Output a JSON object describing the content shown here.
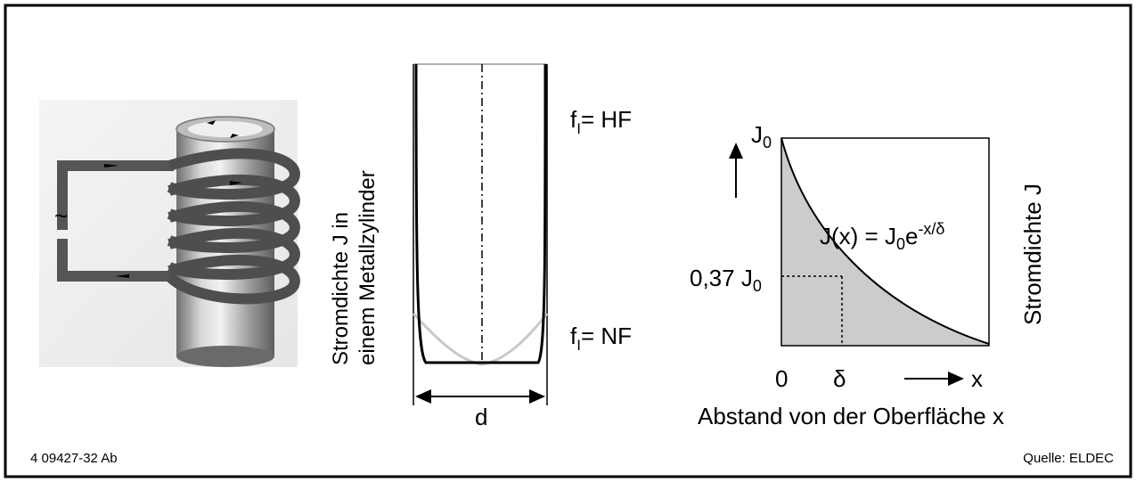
{
  "coil_figure": {
    "source_symbol": "~"
  },
  "cylinder_figure": {
    "ylabel_line1": "Stromdichte J in",
    "ylabel_line2": "einem Metallzylinder",
    "hf_label_f": "f",
    "hf_label_sub": "I",
    "hf_label_rest": "= HF",
    "nf_label_f": "f",
    "nf_label_sub": "I",
    "nf_label_rest": "= NF",
    "diameter_label": "d"
  },
  "decay_figure": {
    "j0_top_main": "J",
    "j0_top_sub": "0",
    "j037_prefix": "0,37 J",
    "j037_sub": "0",
    "formula_a": "J(x) = J",
    "formula_sub": "0",
    "formula_e": "e",
    "formula_exp": "-x/δ",
    "ylabel": "Stromdichte J",
    "tick_zero": "0",
    "tick_delta": "δ",
    "x_arrow_label": "x",
    "xlabel": "Abstand von der Oberfläche x"
  },
  "footer": {
    "left_code": "4 09427-32 Ab",
    "right_source": "Quelle: ELDEC"
  },
  "colors": {
    "frame": "#000000",
    "fill_gray": "#cccccc",
    "nf_curve": "#c8c8c8"
  }
}
